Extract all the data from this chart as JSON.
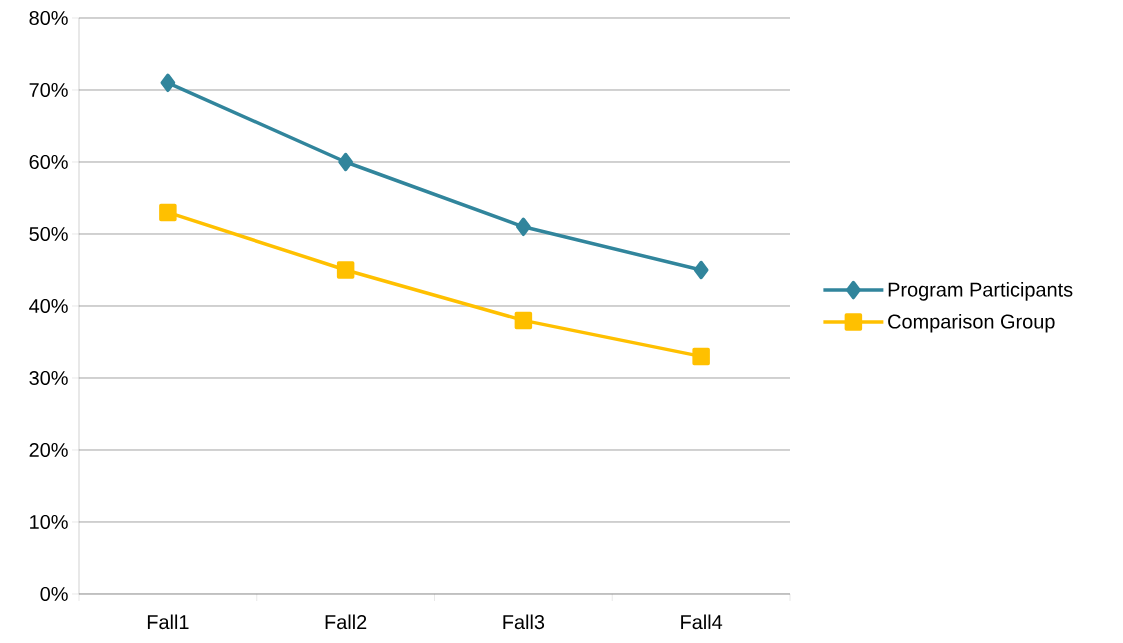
{
  "chart_data": {
    "type": "line",
    "categories": [
      "Fall1",
      "Fall2",
      "Fall3",
      "Fall4"
    ],
    "series": [
      {
        "name": "Program Participants",
        "color": "#31859c",
        "marker": "diamond",
        "values": [
          71,
          60,
          51,
          45
        ]
      },
      {
        "name": "Comparison Group",
        "color": "#ffc000",
        "marker": "square",
        "values": [
          53,
          45,
          38,
          33
        ]
      }
    ],
    "ylim": [
      0,
      80
    ],
    "yticks": [
      {
        "value": 0,
        "label": "0%"
      },
      {
        "value": 10,
        "label": "10%"
      },
      {
        "value": 20,
        "label": "20%"
      },
      {
        "value": 30,
        "label": "30%"
      },
      {
        "value": 40,
        "label": "40%"
      },
      {
        "value": 50,
        "label": "50%"
      },
      {
        "value": 60,
        "label": "60%"
      },
      {
        "value": 70,
        "label": "70%"
      },
      {
        "value": 80,
        "label": "80%"
      }
    ],
    "grid": "y",
    "legend": "right",
    "line_style": "solid"
  }
}
